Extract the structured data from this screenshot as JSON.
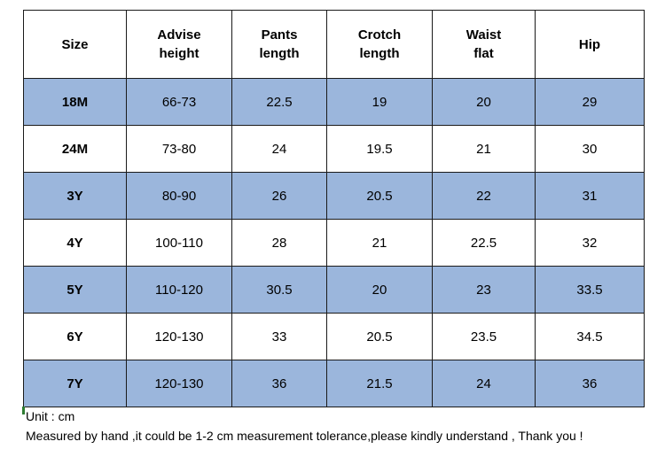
{
  "table": {
    "headers": [
      [
        "Size"
      ],
      [
        "Advise",
        "height"
      ],
      [
        "Pants",
        "length"
      ],
      [
        "Crotch",
        "length"
      ],
      [
        "Waist",
        "flat"
      ],
      [
        "Hip"
      ]
    ],
    "rows": [
      {
        "size": "18M",
        "height": "66-73",
        "pants": "22.5",
        "crotch": "19",
        "waist": "20",
        "hip": "29",
        "shaded": true
      },
      {
        "size": "24M",
        "height": "73-80",
        "pants": "24",
        "crotch": "19.5",
        "waist": "21",
        "hip": "30",
        "shaded": false
      },
      {
        "size": "3Y",
        "height": "80-90",
        "pants": "26",
        "crotch": "20.5",
        "waist": "22",
        "hip": "31",
        "shaded": true
      },
      {
        "size": "4Y",
        "height": "100-110",
        "pants": "28",
        "crotch": "21",
        "waist": "22.5",
        "hip": "32",
        "shaded": false
      },
      {
        "size": "5Y",
        "height": "110-120",
        "pants": "30.5",
        "crotch": "20",
        "waist": "23",
        "hip": "33.5",
        "shaded": true
      },
      {
        "size": "6Y",
        "height": "120-130",
        "pants": "33",
        "crotch": "20.5",
        "waist": "23.5",
        "hip": "34.5",
        "shaded": false
      },
      {
        "size": "7Y",
        "height": "120-130",
        "pants": "36",
        "crotch": "21.5",
        "waist": "24",
        "hip": "36",
        "shaded": true
      }
    ]
  },
  "notes": {
    "unit": "Unit : cm",
    "tolerance": "Measured by hand ,it could be 1-2 cm measurement tolerance,please kindly understand , Thank you !"
  },
  "colors": {
    "shaded_row": "#9bb6dc",
    "border": "#1a1a1a"
  }
}
